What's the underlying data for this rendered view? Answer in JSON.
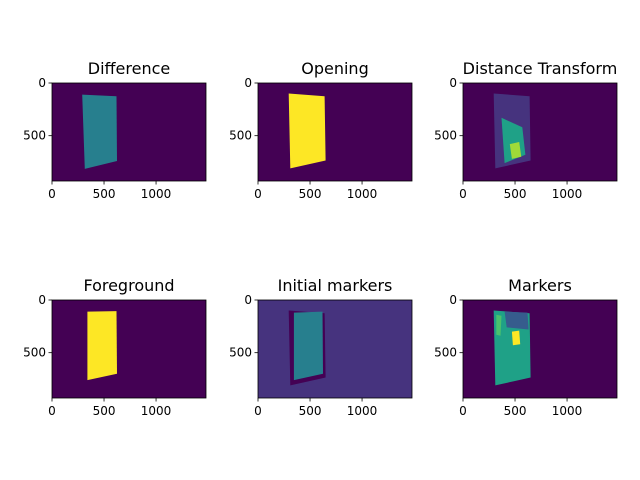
{
  "colors": {
    "viridis_dark": "#440154",
    "viridis_indigo": "#46337e",
    "viridis_blue": "#365c8d",
    "viridis_teal": "#277f8e",
    "viridis_sea": "#1fa187",
    "viridis_green": "#4ac16d",
    "viridis_lime": "#a0da39",
    "viridis_yellow": "#fde725"
  },
  "chart_data": [
    {
      "type": "heatmap",
      "title": "Difference",
      "xlim": [
        0,
        1480
      ],
      "ylim": [
        930,
        0
      ],
      "xticks": [
        {
          "value": 0,
          "label": "0"
        },
        {
          "value": 500,
          "label": "500"
        },
        {
          "value": 1000,
          "label": "1000"
        }
      ],
      "yticks": [
        {
          "value": 0,
          "label": "0"
        },
        {
          "value": 500,
          "label": "500"
        }
      ],
      "regions": [
        {
          "label": "",
          "fill": "viridis_teal",
          "polygon": [
            [
              290,
              110
            ],
            [
              620,
              125
            ],
            [
              625,
              740
            ],
            [
              315,
              815
            ]
          ]
        }
      ]
    },
    {
      "type": "heatmap",
      "title": "Opening",
      "xlim": [
        0,
        1480
      ],
      "ylim": [
        930,
        0
      ],
      "xticks": [
        {
          "value": 0,
          "label": "0"
        },
        {
          "value": 500,
          "label": "500"
        },
        {
          "value": 1000,
          "label": "1000"
        }
      ],
      "yticks": [
        {
          "value": 0,
          "label": "0"
        },
        {
          "value": 500,
          "label": "500"
        }
      ],
      "regions": [
        {
          "label": "",
          "fill": "viridis_yellow",
          "polygon": [
            [
              295,
              100
            ],
            [
              640,
              125
            ],
            [
              650,
              735
            ],
            [
              310,
              810
            ]
          ]
        }
      ]
    },
    {
      "type": "heatmap",
      "title": "Distance Transform",
      "xlim": [
        0,
        1480
      ],
      "ylim": [
        930,
        0
      ],
      "xticks": [
        {
          "value": 0,
          "label": "0"
        },
        {
          "value": 500,
          "label": "500"
        },
        {
          "value": 1000,
          "label": "1000"
        }
      ],
      "yticks": [
        {
          "value": 0,
          "label": "0"
        },
        {
          "value": 500,
          "label": "500"
        }
      ],
      "regions": [
        {
          "label": "",
          "fill": "viridis_indigo",
          "polygon": [
            [
              295,
              100
            ],
            [
              640,
              125
            ],
            [
              650,
              735
            ],
            [
              310,
              810
            ]
          ]
        },
        {
          "label": "",
          "fill": "viridis_sea",
          "polygon": [
            [
              370,
              330
            ],
            [
              570,
              420
            ],
            [
              600,
              680
            ],
            [
              400,
              760
            ]
          ]
        },
        {
          "label": "",
          "fill": "viridis_lime",
          "polygon": [
            [
              450,
              580
            ],
            [
              540,
              560
            ],
            [
              560,
              700
            ],
            [
              470,
              720
            ]
          ]
        }
      ]
    },
    {
      "type": "heatmap",
      "title": "Foreground",
      "xlim": [
        0,
        1480
      ],
      "ylim": [
        930,
        0
      ],
      "xticks": [
        {
          "value": 0,
          "label": "0"
        },
        {
          "value": 500,
          "label": "500"
        },
        {
          "value": 1000,
          "label": "1000"
        }
      ],
      "yticks": [
        {
          "value": 0,
          "label": "0"
        },
        {
          "value": 500,
          "label": "500"
        }
      ],
      "regions": [
        {
          "label": "",
          "fill": "viridis_yellow",
          "polygon": [
            [
              340,
              110
            ],
            [
              620,
              105
            ],
            [
              625,
              700
            ],
            [
              340,
              760
            ]
          ]
        }
      ]
    },
    {
      "type": "heatmap",
      "title": "Initial markers",
      "xlim": [
        0,
        1480
      ],
      "ylim": [
        930,
        0
      ],
      "background": "viridis_indigo",
      "xticks": [
        {
          "value": 0,
          "label": "0"
        },
        {
          "value": 500,
          "label": "500"
        },
        {
          "value": 1000,
          "label": "1000"
        }
      ],
      "yticks": [
        {
          "value": 0,
          "label": "0"
        },
        {
          "value": 500,
          "label": "500"
        }
      ],
      "regions": [
        {
          "label": "",
          "fill": "viridis_dark",
          "polygon": [
            [
              295,
              100
            ],
            [
              640,
              125
            ],
            [
              650,
              735
            ],
            [
              310,
              810
            ]
          ]
        },
        {
          "label": "",
          "fill": "viridis_teal",
          "polygon": [
            [
              345,
              120
            ],
            [
              620,
              110
            ],
            [
              625,
              700
            ],
            [
              345,
              760
            ]
          ]
        }
      ]
    },
    {
      "type": "heatmap",
      "title": "Markers",
      "xlim": [
        0,
        1480
      ],
      "ylim": [
        930,
        0
      ],
      "xticks": [
        {
          "value": 0,
          "label": "0"
        },
        {
          "value": 500,
          "label": "500"
        },
        {
          "value": 1000,
          "label": "1000"
        }
      ],
      "yticks": [
        {
          "value": 0,
          "label": "0"
        },
        {
          "value": 500,
          "label": "500"
        }
      ],
      "regions": [
        {
          "label": "",
          "fill": "viridis_sea",
          "polygon": [
            [
              295,
              100
            ],
            [
              640,
              125
            ],
            [
              650,
              735
            ],
            [
              310,
              810
            ]
          ]
        },
        {
          "label": "",
          "fill": "viridis_blue",
          "polygon": [
            [
              400,
              110
            ],
            [
              620,
              120
            ],
            [
              630,
              280
            ],
            [
              420,
              260
            ]
          ]
        },
        {
          "label": "",
          "fill": "viridis_yellow",
          "polygon": [
            [
              470,
              300
            ],
            [
              540,
              290
            ],
            [
              550,
              420
            ],
            [
              480,
              430
            ]
          ]
        },
        {
          "label": "",
          "fill": "viridis_green",
          "polygon": [
            [
              320,
              140
            ],
            [
              370,
              150
            ],
            [
              360,
              340
            ],
            [
              320,
              330
            ]
          ]
        }
      ]
    }
  ]
}
